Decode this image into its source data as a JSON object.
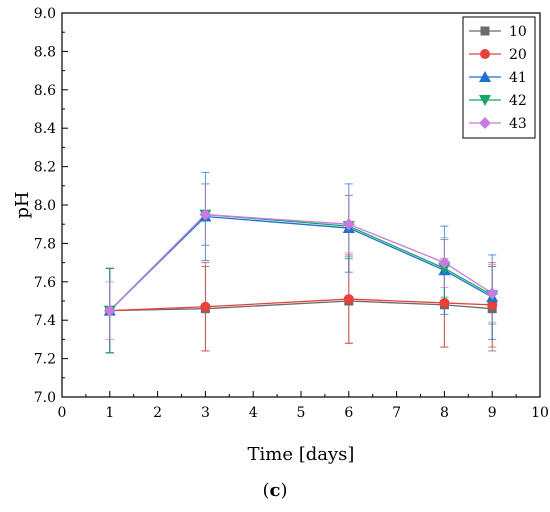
{
  "chart_data": {
    "type": "line",
    "title": "",
    "xlabel": "Time [days]",
    "ylabel": "pH",
    "xlim": [
      0,
      10
    ],
    "ylim": [
      7.0,
      9.0
    ],
    "xticks": [
      "0",
      "1",
      "2",
      "3",
      "4",
      "5",
      "6",
      "7",
      "8",
      "9",
      "10"
    ],
    "yticks": [
      "7.0",
      "7.2",
      "7.4",
      "7.6",
      "7.8",
      "8.0",
      "8.2",
      "8.4",
      "8.6",
      "8.8",
      "9.0"
    ],
    "grid": false,
    "legend_position": "top-right",
    "x": [
      1,
      3,
      6,
      8,
      9
    ],
    "series": [
      {
        "name": "10",
        "marker": "square",
        "color": "#6b6b6b",
        "values": [
          7.45,
          7.46,
          7.5,
          7.48,
          7.46
        ],
        "errors": [
          0.22,
          0.22,
          0.22,
          0.22,
          0.22
        ]
      },
      {
        "name": "20",
        "marker": "circle",
        "color": "#e8413c",
        "values": [
          7.45,
          7.47,
          7.51,
          7.49,
          7.48
        ],
        "errors": [
          0.22,
          0.23,
          0.23,
          0.23,
          0.22
        ]
      },
      {
        "name": "41",
        "marker": "triangle-up",
        "color": "#1f6fd1",
        "values": [
          7.45,
          7.94,
          7.88,
          7.66,
          7.52
        ],
        "errors": [
          0.22,
          0.23,
          0.23,
          0.23,
          0.22
        ]
      },
      {
        "name": "42",
        "marker": "triangle-down",
        "color": "#13a866",
        "values": [
          7.45,
          7.95,
          7.89,
          7.67,
          7.53
        ],
        "errors": [
          0.22,
          0.16,
          0.16,
          0.15,
          0.15
        ]
      },
      {
        "name": "43",
        "marker": "diamond",
        "color": "#c77be0",
        "values": [
          7.45,
          7.95,
          7.9,
          7.7,
          7.54
        ],
        "errors": [
          0.15,
          0.16,
          0.15,
          0.13,
          0.15
        ]
      }
    ]
  },
  "panel_label": "c"
}
